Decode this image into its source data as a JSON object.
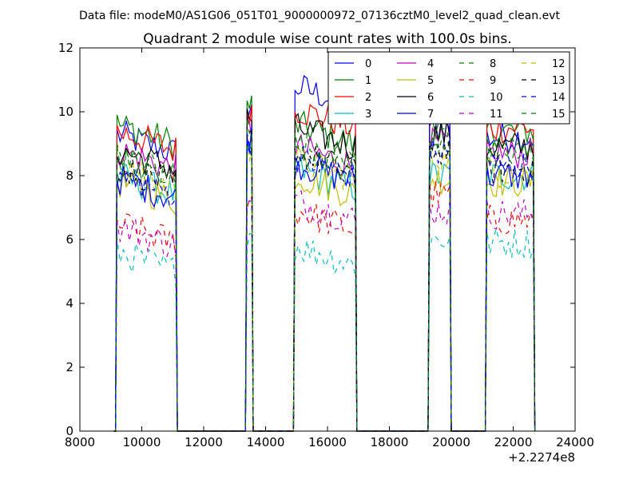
{
  "chart_data": {
    "type": "line",
    "suptitle": "Data file: modeM0/AS1G06_051T01_9000000972_07136cztM0_level2_quad_clean.evt",
    "title": "Quadrant 2 module wise count rates with 100.0s bins.",
    "xlabel": "",
    "ylabel": "",
    "x_offset_label": "+2.2274e8",
    "xlim": [
      8000,
      24000
    ],
    "ylim": [
      0,
      12
    ],
    "x_ticks": [
      "8000",
      "10000",
      "12000",
      "14000",
      "16000",
      "18000",
      "20000",
      "22000",
      "24000"
    ],
    "y_ticks": [
      "0",
      "2",
      "4",
      "6",
      "8",
      "10",
      "12"
    ],
    "grid": false,
    "legend_position": "top-right",
    "time_segments": [
      {
        "start": 9200,
        "end": 11100
      },
      {
        "start": 13400,
        "end": 13550
      },
      {
        "start": 14950,
        "end": 16900
      },
      {
        "start": 19300,
        "end": 19950
      },
      {
        "start": 21150,
        "end": 22650
      }
    ],
    "series": [
      {
        "name": "0",
        "color": "#0000ff",
        "dash": "solid",
        "segment_levels": [
          9.3,
          10.0,
          10.8,
          9.5,
          9.2
        ]
      },
      {
        "name": "1",
        "color": "#008000",
        "dash": "solid",
        "segment_levels": [
          9.6,
          10.2,
          9.6,
          9.8,
          9.4
        ]
      },
      {
        "name": "2",
        "color": "#ff0000",
        "dash": "solid",
        "segment_levels": [
          9.4,
          10.1,
          10.1,
          9.9,
          9.5
        ]
      },
      {
        "name": "3",
        "color": "#00bfbf",
        "dash": "solid",
        "segment_levels": [
          8.0,
          8.5,
          8.2,
          8.0,
          8.0
        ]
      },
      {
        "name": "4",
        "color": "#bf00bf",
        "dash": "solid",
        "segment_levels": [
          8.8,
          9.4,
          8.9,
          9.0,
          8.7
        ]
      },
      {
        "name": "5",
        "color": "#bfbf00",
        "dash": "solid",
        "segment_levels": [
          7.8,
          8.6,
          8.0,
          7.9,
          7.8
        ]
      },
      {
        "name": "6",
        "color": "#000000",
        "dash": "solid",
        "segment_levels": [
          8.8,
          9.8,
          9.5,
          9.3,
          8.9
        ]
      },
      {
        "name": "7",
        "color": "#0000ff",
        "dash": "solid",
        "segment_levels": [
          7.9,
          9.2,
          8.4,
          10.3,
          8.0
        ]
      },
      {
        "name": "8",
        "color": "#008000",
        "dash": "dashed",
        "segment_levels": [
          8.6,
          9.6,
          8.8,
          9.0,
          8.8
        ]
      },
      {
        "name": "9",
        "color": "#ff0000",
        "dash": "dashed",
        "segment_levels": [
          6.5,
          7.2,
          6.9,
          7.4,
          6.6
        ]
      },
      {
        "name": "10",
        "color": "#00bfbf",
        "dash": "dashed",
        "segment_levels": [
          5.6,
          6.2,
          5.8,
          6.0,
          5.9
        ]
      },
      {
        "name": "11",
        "color": "#bf00bf",
        "dash": "dashed",
        "segment_levels": [
          6.4,
          7.0,
          7.2,
          6.9,
          6.8
        ]
      },
      {
        "name": "12",
        "color": "#bfbf00",
        "dash": "dashed",
        "segment_levels": [
          8.2,
          8.9,
          8.5,
          8.6,
          8.1
        ]
      },
      {
        "name": "13",
        "color": "#000000",
        "dash": "dashed",
        "segment_levels": [
          8.3,
          9.1,
          8.7,
          8.8,
          8.2
        ]
      },
      {
        "name": "14",
        "color": "#0000ff",
        "dash": "dashed",
        "segment_levels": [
          8.0,
          9.0,
          8.6,
          8.7,
          8.3
        ]
      },
      {
        "name": "15",
        "color": "#008000",
        "dash": "dashed",
        "segment_levels": [
          8.5,
          9.3,
          9.0,
          9.1,
          8.6
        ]
      }
    ]
  }
}
